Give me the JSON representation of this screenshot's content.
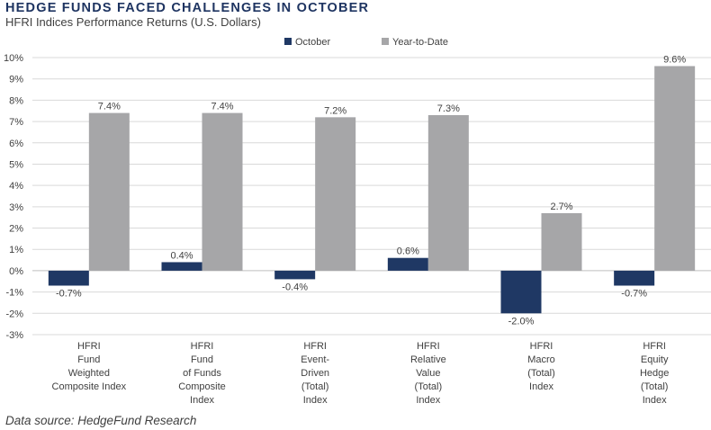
{
  "header": {
    "title": "HEDGE FUNDS FACED CHALLENGES IN OCTOBER",
    "subtitle": "HFRI Indices Performance Returns (U.S. Dollars)"
  },
  "footnote": "Data source: HedgeFund Research",
  "chart_data": {
    "type": "bar",
    "title": "HEDGE FUNDS FACED CHALLENGES IN OCTOBER",
    "subtitle": "HFRI Indices Performance Returns (U.S. Dollars)",
    "categories": [
      [
        "HFRI",
        "Fund",
        "Weighted",
        "Composite Index"
      ],
      [
        "HFRI",
        "Fund",
        "of Funds",
        "Composite",
        "Index"
      ],
      [
        "HFRI",
        "Event-",
        "Driven",
        "(Total)",
        "Index"
      ],
      [
        "HFRI",
        "Relative",
        "Value",
        "(Total)",
        "Index"
      ],
      [
        "HFRI",
        "Macro",
        "(Total)",
        "Index"
      ],
      [
        "HFRI",
        "Equity",
        "Hedge",
        "(Total)",
        "Index"
      ]
    ],
    "series": [
      {
        "name": "October",
        "color": "#1f3864",
        "values": [
          -0.7,
          0.4,
          -0.4,
          0.6,
          -2.0,
          -0.7
        ],
        "labels": [
          "-0.7%",
          "0.4%",
          "-0.4%",
          "0.6%",
          "-2.0%",
          "-0.7%"
        ]
      },
      {
        "name": "Year-to-Date",
        "color": "#a6a6a8",
        "values": [
          7.4,
          7.4,
          7.2,
          7.3,
          2.7,
          9.6
        ],
        "labels": [
          "7.4%",
          "7.4%",
          "7.2%",
          "7.3%",
          "2.7%",
          "9.6%"
        ]
      }
    ],
    "yticks": [
      "10%",
      "9%",
      "8%",
      "7%",
      "6%",
      "5%",
      "4%",
      "3%",
      "2%",
      "1%",
      "0%",
      "-1%",
      "-2%",
      "-3%"
    ],
    "ylim": [
      -3,
      10
    ],
    "grid": true,
    "legend_position": "top"
  }
}
